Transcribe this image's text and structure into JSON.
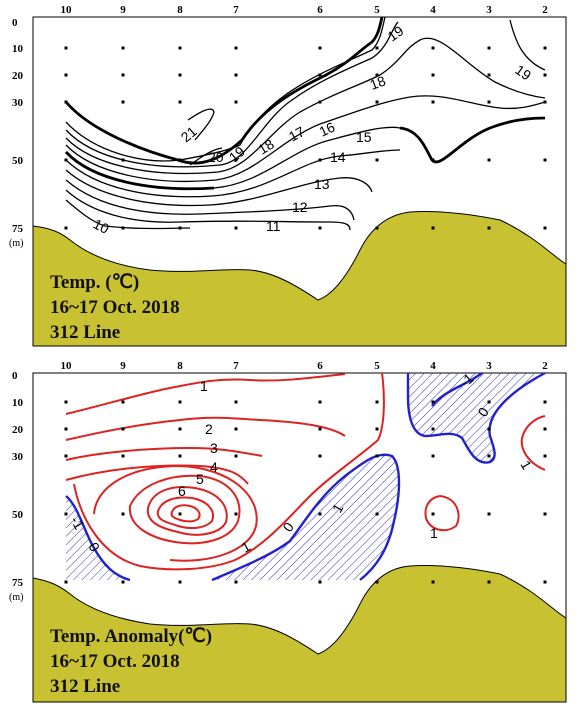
{
  "panels": [
    {
      "stations": [
        "10",
        "9",
        "8",
        "7",
        "6",
        "5",
        "4",
        "3",
        "2"
      ],
      "depths": [
        "0",
        "10",
        "20",
        "30",
        "50",
        "75"
      ],
      "depth_unit": "(m)",
      "caption": [
        "Temp. (℃)",
        "16~17 Oct. 2018",
        "312 Line"
      ],
      "contour_labels": [
        "10",
        "11",
        "12",
        "13",
        "14",
        "15",
        "16",
        "17",
        "18",
        "19",
        "20",
        "21",
        "19",
        "18",
        "19"
      ]
    },
    {
      "stations": [
        "10",
        "9",
        "8",
        "7",
        "6",
        "5",
        "4",
        "3",
        "2"
      ],
      "depths": [
        "0",
        "10",
        "20",
        "30",
        "50",
        "75"
      ],
      "depth_unit": "(m)",
      "caption": [
        "Temp. Anomaly(℃)",
        "16~17 Oct. 2018",
        "312 Line"
      ],
      "contour_labels": [
        "1",
        "2",
        "3",
        "4",
        "5",
        "6",
        "1",
        "0",
        "-1",
        "1",
        "-1",
        "0",
        "1",
        "1",
        "-1",
        "0"
      ]
    }
  ],
  "chart_data": [
    {
      "type": "contour",
      "title": "Temp. (℃) 16~17 Oct. 2018 312 Line",
      "x_categories": [
        "10",
        "9",
        "8",
        "7",
        "6",
        "5",
        "4",
        "3",
        "2"
      ],
      "xlabel": "",
      "ylabel": "(m)",
      "y_ticks": [
        0,
        10,
        20,
        30,
        50,
        75
      ],
      "ylim": [
        75,
        0
      ],
      "contour_levels": [
        10,
        11,
        12,
        13,
        14,
        15,
        16,
        17,
        18,
        19,
        20,
        21
      ],
      "colors": {
        "contour": "#000000",
        "seabed": "#c8c232"
      }
    },
    {
      "type": "contour",
      "title": "Temp. Anomaly(℃) 16~17 Oct. 2018 312 Line",
      "x_categories": [
        "10",
        "9",
        "8",
        "7",
        "6",
        "5",
        "4",
        "3",
        "2"
      ],
      "xlabel": "",
      "ylabel": "(m)",
      "y_ticks": [
        0,
        10,
        20,
        30,
        50,
        75
      ],
      "ylim": [
        75,
        0
      ],
      "contour_levels": [
        -1,
        0,
        1,
        2,
        3,
        4,
        5,
        6
      ],
      "colors": {
        "positive": "#dd2222",
        "negative": "#2222cc",
        "negative_hatch": "#3a3acc",
        "seabed": "#c8c232"
      }
    }
  ]
}
